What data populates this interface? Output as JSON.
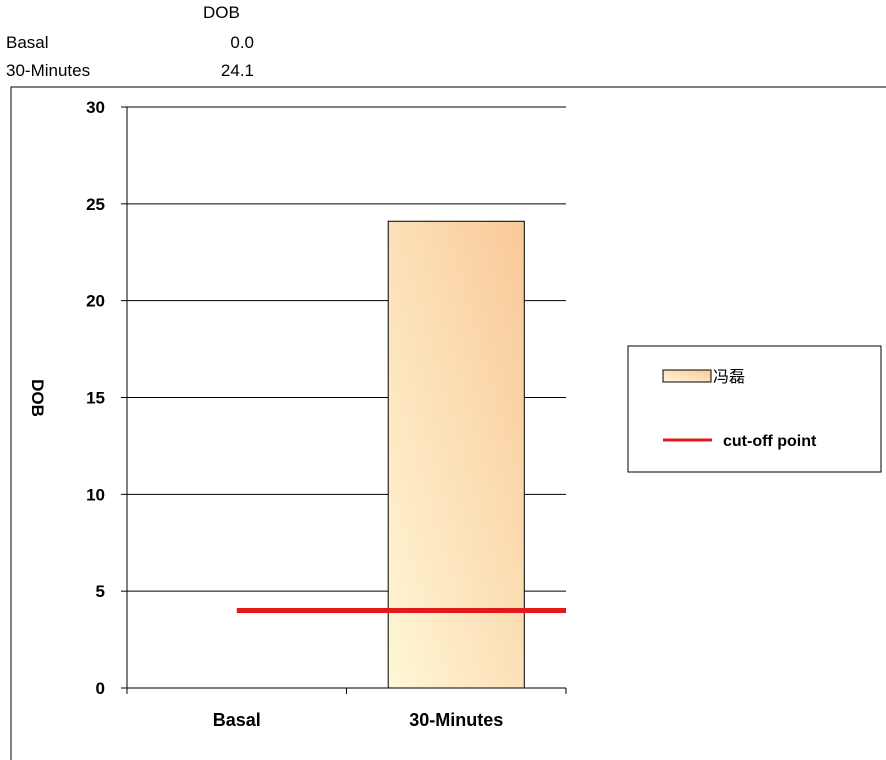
{
  "table": {
    "header": "DOB",
    "rows": [
      {
        "label": "Basal",
        "value": "0.0"
      },
      {
        "label": "30-Minutes",
        "value": "24.1"
      }
    ]
  },
  "chart_data": {
    "type": "bar",
    "categories": [
      "Basal",
      "30-Minutes"
    ],
    "series": [
      {
        "name": "冯磊",
        "values": [
          0.0,
          24.1
        ],
        "color": "#f9c998"
      }
    ],
    "reference_lines": [
      {
        "name": "cut-off point",
        "y": 4,
        "color": "#e31a1c"
      }
    ],
    "ylabel": "DOB",
    "xlabel": "",
    "ylim": [
      0,
      30
    ],
    "yticks": [
      0,
      5,
      10,
      15,
      20,
      25,
      30
    ],
    "grid": true,
    "legend_position": "right"
  }
}
